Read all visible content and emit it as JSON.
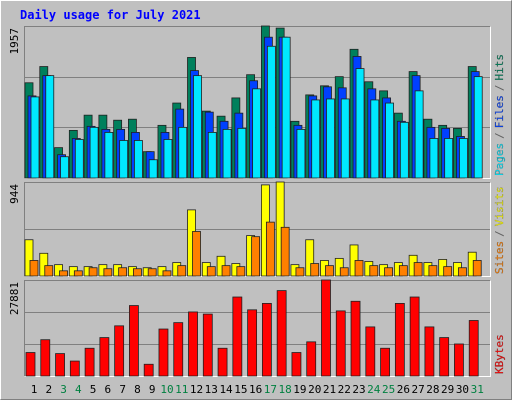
{
  "title": "Daily usage for July 2021",
  "separator": "/",
  "chart_data": [
    {
      "type": "bar",
      "ylim": [
        0,
        1957
      ],
      "yticks": [
        1957
      ],
      "grid_values": [
        652,
        1305
      ],
      "series": [
        {
          "name": "Hits",
          "color": "#00805c",
          "values": [
            1226,
            1435,
            391,
            613,
            809,
            809,
            744,
            757,
            339,
            678,
            965,
            1552,
            861,
            796,
            1031,
            1330,
            1957,
            1930,
            730,
            1070,
            1187,
            1305,
            1657,
            1239,
            1122,
            835,
            1370,
            757,
            678,
            639,
            1435
          ]
        },
        {
          "name": "Files",
          "color": "#0040ff",
          "values": [
            1057,
            1318,
            300,
            509,
            665,
            626,
            626,
            587,
            339,
            587,
            887,
            1383,
            848,
            730,
            835,
            1252,
            1813,
            1813,
            678,
            1057,
            1174,
            1161,
            1565,
            1148,
            1031,
            730,
            1318,
            652,
            639,
            535,
            1370
          ]
        },
        {
          "name": "Pages",
          "color": "#00e8ff",
          "values": [
            1044,
            1318,
            274,
            496,
            652,
            587,
            483,
            483,
            235,
            496,
            652,
            1318,
            587,
            626,
            639,
            1148,
            1696,
            1813,
            626,
            1005,
            1018,
            1018,
            1409,
            1005,
            965,
            717,
            1122,
            509,
            509,
            509,
            1305
          ]
        }
      ]
    },
    {
      "type": "bar",
      "ylim": [
        0,
        944
      ],
      "yticks": [
        944
      ],
      "grid_values": [
        472
      ],
      "series": [
        {
          "name": "Visits",
          "color": "#ffff00",
          "values": [
            364,
            228,
            114,
            94,
            94,
            114,
            114,
            94,
            83,
            94,
            135,
            664,
            135,
            198,
            125,
            406,
            915,
            944,
            114,
            364,
            156,
            177,
            312,
            146,
            114,
            135,
            208,
            135,
            166,
            135,
            239
          ]
        },
        {
          "name": "Sites",
          "color": "#ff8000",
          "values": [
            156,
            104,
            52,
            52,
            83,
            73,
            83,
            73,
            73,
            52,
            104,
            447,
            94,
            104,
            94,
            395,
            541,
            489,
            83,
            125,
            104,
            83,
            156,
            104,
            83,
            104,
            135,
            104,
            94,
            83,
            156
          ]
        }
      ]
    },
    {
      "type": "bar",
      "ylim": [
        0,
        27881
      ],
      "yticks": [
        27881
      ],
      "grid_values": [
        9294,
        18587
      ],
      "categories": [
        "1",
        "2",
        "3",
        "4",
        "5",
        "6",
        "7",
        "8",
        "9",
        "10",
        "11",
        "12",
        "13",
        "14",
        "15",
        "16",
        "17",
        "18",
        "19",
        "20",
        "21",
        "22",
        "23",
        "24",
        "25",
        "26",
        "27",
        "28",
        "29",
        "30",
        "31"
      ],
      "category_colors": [
        "#000000",
        "#000000",
        "#008040",
        "#008040",
        "#000000",
        "#000000",
        "#000000",
        "#000000",
        "#000000",
        "#008040",
        "#008040",
        "#000000",
        "#000000",
        "#000000",
        "#000000",
        "#000000",
        "#008040",
        "#008040",
        "#000000",
        "#000000",
        "#000000",
        "#000000",
        "#000000",
        "#008040",
        "#008040",
        "#000000",
        "#000000",
        "#000000",
        "#000000",
        "#000000",
        "#008040"
      ],
      "series": [
        {
          "name": "KBytes",
          "color": "#ff0000",
          "values": [
            6820,
            10540,
            6510,
            4340,
            8060,
            11160,
            14570,
            20460,
            3410,
            13640,
            15500,
            18600,
            17980,
            8060,
            22940,
            19220,
            21080,
            24800,
            6820,
            9920,
            27881,
            18910,
            21700,
            14260,
            8060,
            21080,
            22940,
            14260,
            11160,
            9300,
            16120
          ]
        }
      ]
    }
  ]
}
